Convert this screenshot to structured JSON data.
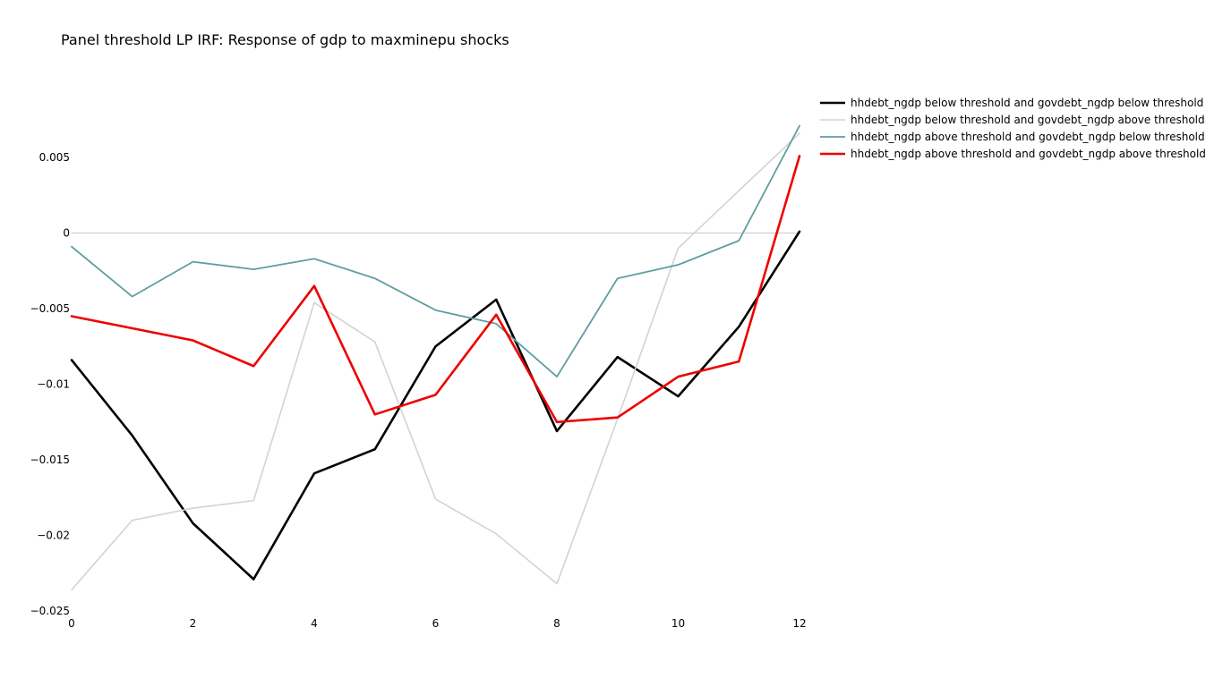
{
  "chart_data": {
    "type": "line",
    "title": "Panel threshold LP IRF: Response of gdp to maxminepu shocks",
    "xlabel": "",
    "ylabel": "",
    "x": [
      0,
      1,
      2,
      3,
      4,
      5,
      6,
      7,
      8,
      9,
      10,
      11,
      12
    ],
    "xlim": [
      0,
      12
    ],
    "ylim": [
      -0.025,
      0.0095
    ],
    "x_ticks": [
      0,
      2,
      4,
      6,
      8,
      10,
      12
    ],
    "x_tick_labels": [
      "0",
      "2",
      "4",
      "6",
      "8",
      "10",
      "12"
    ],
    "y_ticks": [
      0.005,
      0,
      -0.005,
      -0.01,
      -0.015,
      -0.02,
      -0.025
    ],
    "y_tick_labels": [
      "0.005",
      "0",
      "−0.005",
      "−0.01",
      "−0.015",
      "−0.02",
      "−0.025"
    ],
    "zero_line": true,
    "grid": false,
    "legend_position": "top-right",
    "series": [
      {
        "name": "hhdebt_ngdp below threshold and govdebt_ngdp below threshold",
        "color": "#000000",
        "values": [
          -0.0084,
          -0.0134,
          -0.0192,
          -0.0229,
          -0.0159,
          -0.0143,
          -0.0075,
          -0.0044,
          -0.0131,
          -0.0082,
          -0.0108,
          -0.0062,
          0.0001
        ]
      },
      {
        "name": "hhdebt_ngdp below threshold and govdebt_ngdp above threshold",
        "color": "#d3d3d3",
        "values": [
          -0.0236,
          -0.019,
          -0.0182,
          -0.0177,
          -0.0046,
          -0.0072,
          -0.0176,
          -0.0199,
          -0.0232,
          -0.0123,
          -0.001,
          0.0028,
          0.0066
        ]
      },
      {
        "name": "hhdebt_ngdp above threshold and govdebt_ngdp below threshold",
        "color": "#5f9ea0",
        "values": [
          -0.0009,
          -0.0042,
          -0.0019,
          -0.0024,
          -0.0017,
          -0.003,
          -0.0051,
          -0.006,
          -0.0095,
          -0.003,
          -0.0021,
          -0.0005,
          0.0071
        ]
      },
      {
        "name": "hhdebt_ngdp above threshold and govdebt_ngdp above threshold",
        "color": "#ee0000",
        "values": [
          -0.0055,
          -0.0063,
          -0.0071,
          -0.0088,
          -0.0035,
          -0.012,
          -0.0107,
          -0.0054,
          -0.0125,
          -0.0122,
          -0.0095,
          -0.0085,
          0.0051
        ]
      }
    ]
  }
}
